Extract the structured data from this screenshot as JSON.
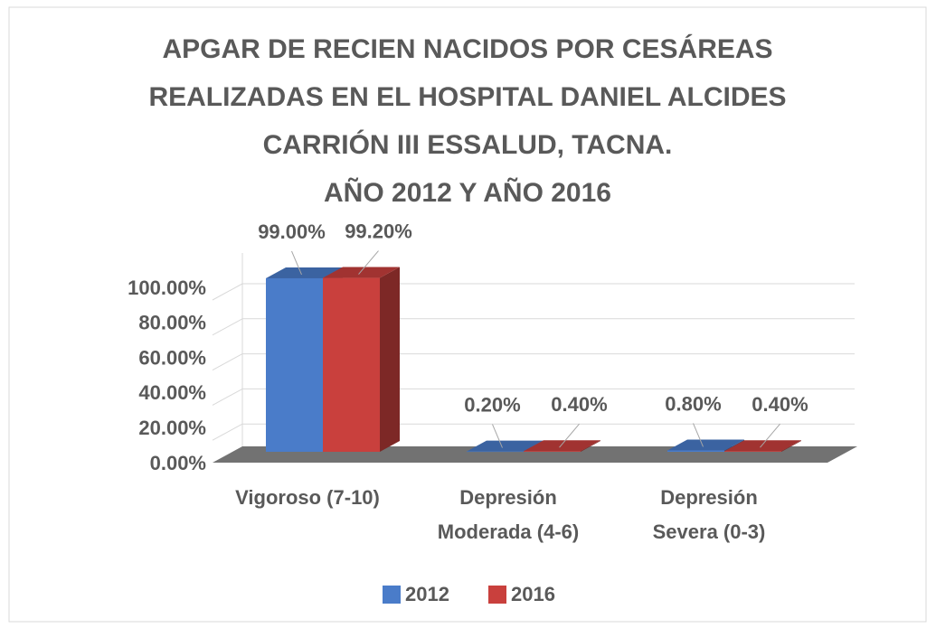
{
  "chart_data": {
    "type": "bar3d",
    "title": "APGAR DE RECIEN NACIDOS POR CESÁREAS\nREALIZADAS EN EL HOSPITAL DANIEL ALCIDES\nCARRIÓN III ESSALUD, TACNA.\nAÑO 2012 Y AÑO 2016",
    "categories": [
      "Vigoroso (7-10)",
      "Depresión\nModerada (4-6)",
      "Depresión\nSevera (0-3)"
    ],
    "series": [
      {
        "name": "2012",
        "color": "#4a7cc9",
        "values": [
          99,
          0.2,
          0.8
        ],
        "value_labels": [
          "99.00%",
          "0.20%",
          "0.80%"
        ]
      },
      {
        "name": "2016",
        "color": "#c9403d",
        "values": [
          99.2,
          0.4,
          0.4
        ],
        "value_labels": [
          "99.20%",
          "0.40%",
          "0.40%"
        ]
      }
    ],
    "ylim": [
      0,
      100
    ],
    "yticks": [
      {
        "value": 0,
        "label": "0.00%"
      },
      {
        "value": 20,
        "label": "20.00%"
      },
      {
        "value": 40,
        "label": "40.00%"
      },
      {
        "value": 60,
        "label": "60.00%"
      },
      {
        "value": 80,
        "label": "80.00%"
      },
      {
        "value": 100,
        "label": "100.00%"
      }
    ],
    "grid": true,
    "legend": "bottom"
  }
}
